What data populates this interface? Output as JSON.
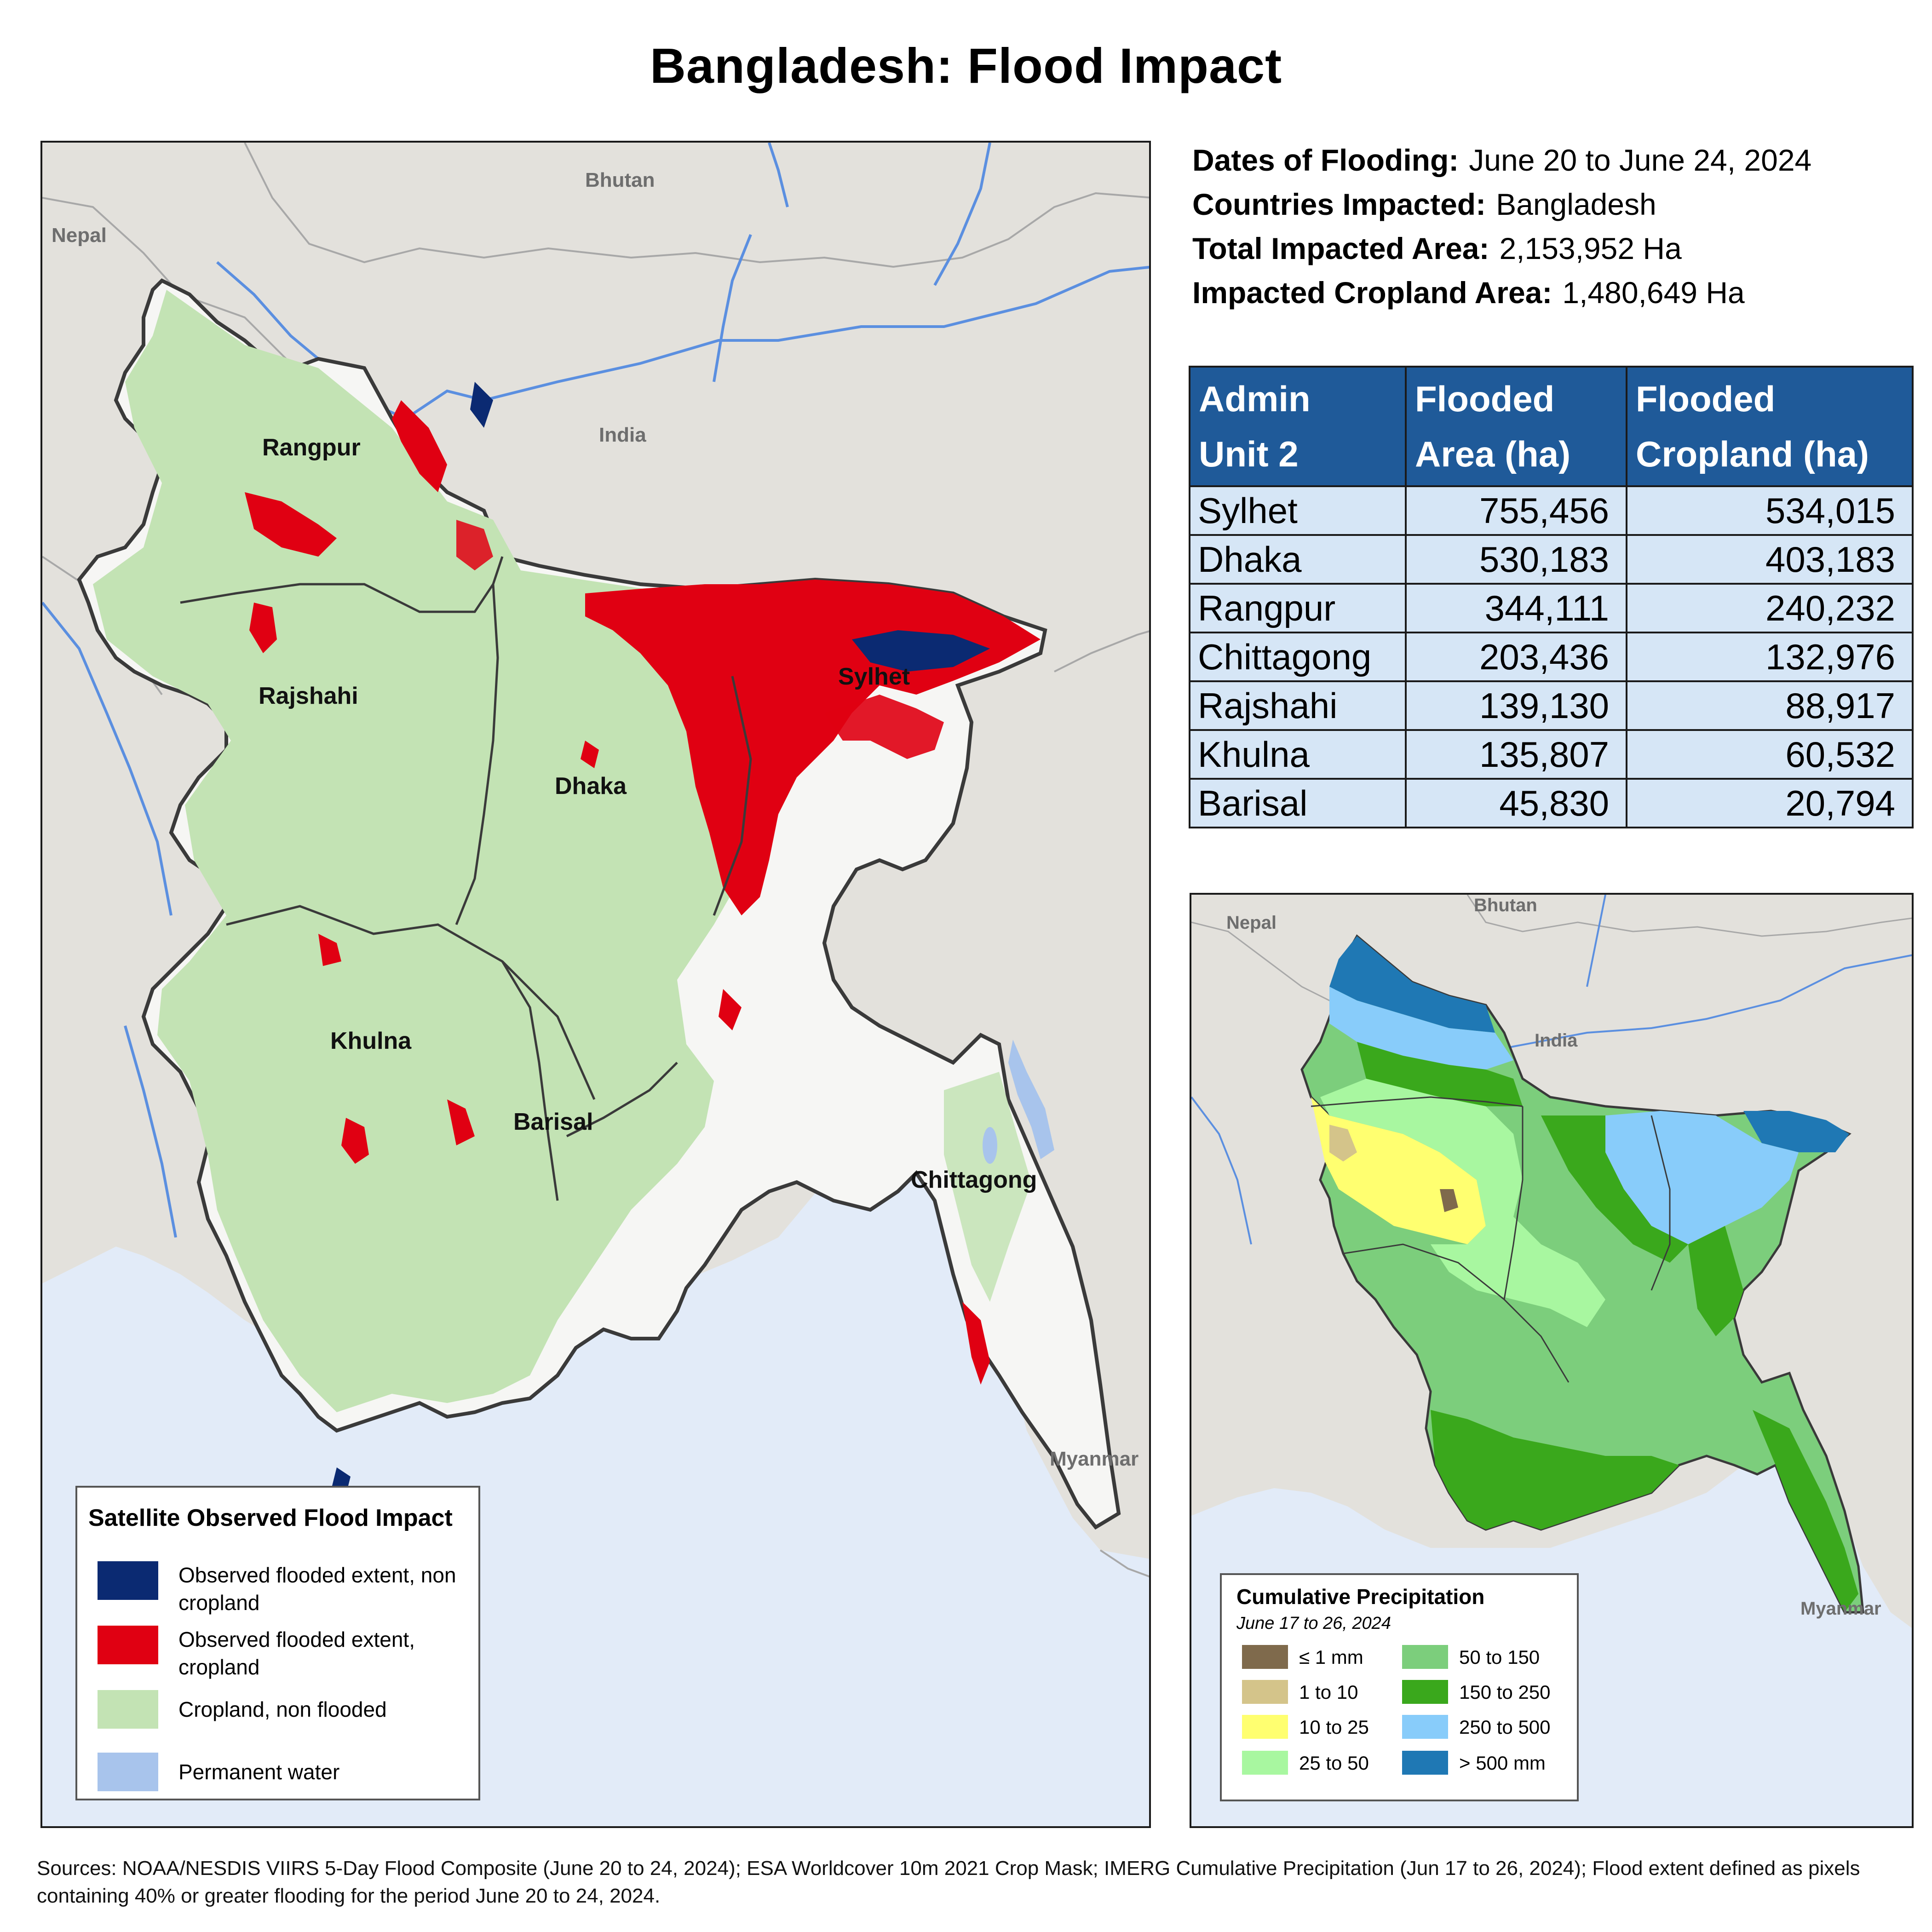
{
  "title": "Bangladesh: Flood Impact",
  "summary": {
    "dates_label": "Dates of Flooding:",
    "dates_value": "June 20 to June 24, 2024",
    "countries_label": "Countries Impacted:",
    "countries_value": "Bangladesh",
    "total_label": "Total Impacted Area:",
    "total_value": "2,153,952 Ha",
    "cropland_label": "Impacted Cropland Area:",
    "cropland_value": "1,480,649 Ha"
  },
  "table": {
    "headers": [
      [
        "Admin",
        "Unit 2"
      ],
      [
        "Flooded",
        "Area (ha)"
      ],
      [
        "Flooded",
        "Cropland (ha)"
      ]
    ],
    "rows": [
      [
        "Sylhet",
        "755,456",
        "534,015"
      ],
      [
        "Dhaka",
        "530,183",
        "403,183"
      ],
      [
        "Rangpur",
        "344,111",
        "240,232"
      ],
      [
        "Chittagong",
        "203,436",
        "132,976"
      ],
      [
        "Rajshahi",
        "139,130",
        "88,917"
      ],
      [
        "Khulna",
        "135,807",
        "60,532"
      ],
      [
        "Barisal",
        "45,830",
        "20,794"
      ]
    ]
  },
  "main_map": {
    "country_labels": [
      "Nepal",
      "Bhutan",
      "India",
      "Myanmar"
    ],
    "division_labels": [
      "Rangpur",
      "Rajshahi",
      "Dhaka",
      "Sylhet",
      "Khulna",
      "Barisal",
      "Chittagong"
    ],
    "colors": {
      "land": "#e3e1dc",
      "sea": "#e2ebf8",
      "cropland": "#c3e3b4",
      "flood_cropland": "#e00012",
      "flood_noncrop": "#0b2a72",
      "water": "#a8c4ec",
      "river": "#5b8fe0"
    }
  },
  "legend": {
    "title": "Satellite Observed Flood Impact",
    "items": [
      {
        "label": "Observed flooded extent, non cropland",
        "color": "#0b2a72"
      },
      {
        "label": "Observed flooded extent, cropland",
        "color": "#e00012"
      },
      {
        "label": "Cropland, non flooded",
        "color": "#c3e3b4"
      },
      {
        "label": "Permanent water",
        "color": "#a8c4ec"
      }
    ]
  },
  "precip_map": {
    "country_labels": [
      "Nepal",
      "Bhutan",
      "India",
      "Myanmar"
    ]
  },
  "precip_legend": {
    "title": "Cumulative Precipitation",
    "subtitle": "June 17 to 26, 2024",
    "items": [
      {
        "label": "≤ 1 mm",
        "color": "#7f6a4c"
      },
      {
        "label": "1 to 10",
        "color": "#d4c48a"
      },
      {
        "label": "10 to 25",
        "color": "#ffff70"
      },
      {
        "label": "25 to 50",
        "color": "#a8f7a0"
      },
      {
        "label": "50 to 150",
        "color": "#7cce7c"
      },
      {
        "label": "150 to 250",
        "color": "#3aa81c"
      },
      {
        "label": "250 to 500",
        "color": "#88ccfa"
      },
      {
        "label": "> 500 mm",
        "color": "#1f78b4"
      }
    ]
  },
  "sources": "Sources: NOAA/NESDIS VIIRS 5-Day Flood Composite (June 20 to 24, 2024); ESA Worldcover 10m 2021 Crop Mask; IMERG Cumulative Precipitation (Jun 17 to 26, 2024); Flood extent defined as pixels containing 40% or greater flooding for the period June 20 to 24, 2024."
}
